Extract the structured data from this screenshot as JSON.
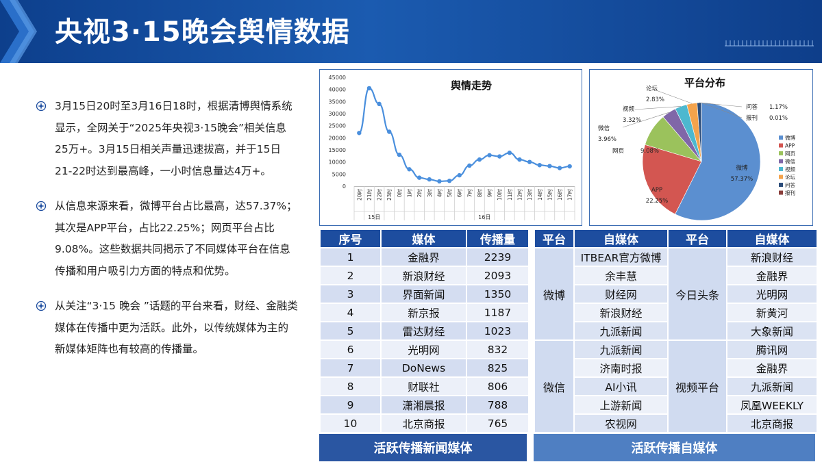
{
  "header": {
    "title": "央视3·15晚会舆情数据"
  },
  "paragraphs": [
    "3月15日20时至3月16日18时，根据清博舆情系统显示，全网关于“2025年央视3·15晚会”相关信息25万+。3月15日相关声量迅速拔高，并于15日21-22时达到最高峰，一小时信息量达4万+。",
    "从信息来源来看，微博平台占比最高，达57.37%；其次是APP平台，占比22.25%；网页平台占比9.08%。这些数据共同揭示了不同媒体平台在信息传播和用户吸引力方面的特点和优势。",
    "从关注“3·15 晚会 ”话题的平台来看，财经、金融类媒体在传播中更为活跃。此外，以传统媒体为主的新媒体矩阵也有较高的传播量。"
  ],
  "chart_data": [
    {
      "type": "line",
      "title": "舆情走势",
      "x": [
        "20时",
        "21时",
        "22时",
        "23时",
        "0时",
        "1时",
        "2时",
        "3时",
        "4时",
        "5时",
        "6时",
        "7时",
        "8时",
        "9时",
        "10时",
        "11时",
        "12时",
        "13时",
        "14时",
        "15时",
        "16时",
        "17时"
      ],
      "values": [
        22000,
        40500,
        34000,
        22500,
        13000,
        7000,
        3500,
        2800,
        2000,
        2200,
        4500,
        8500,
        11000,
        12800,
        12300,
        13800,
        11000,
        10000,
        8700,
        8300,
        7500,
        8200
      ],
      "groups": [
        {
          "label": "15日",
          "from": 0,
          "to": 3
        },
        {
          "label": "16日",
          "from": 4,
          "to": 21
        }
      ],
      "ylim": [
        0,
        45000
      ],
      "yticks": [
        0,
        5000,
        10000,
        15000,
        20000,
        25000,
        30000,
        35000,
        40000,
        45000
      ],
      "color": "#4a8fdd"
    },
    {
      "type": "pie",
      "title": "平台分布",
      "slices": [
        {
          "name": "微博",
          "value": 57.37,
          "label": "57.37%",
          "color": "#5b8fd0"
        },
        {
          "name": "APP",
          "value": 22.25,
          "label": "22.25%",
          "color": "#d35651"
        },
        {
          "name": "网页",
          "value": 9.08,
          "label": "9.08%",
          "color": "#9bc25c"
        },
        {
          "name": "微信",
          "value": 3.96,
          "label": "3.96%",
          "color": "#8067a8"
        },
        {
          "name": "视频",
          "value": 3.32,
          "label": "3.32%",
          "color": "#4db8cf"
        },
        {
          "name": "论坛",
          "value": 2.83,
          "label": "2.83%",
          "color": "#f4a34c"
        },
        {
          "name": "问答",
          "value": 1.17,
          "label": "1.17%",
          "color": "#2c4d7a"
        },
        {
          "name": "报刊",
          "value": 0.01,
          "label": "0.01%",
          "color": "#8a3e3b"
        }
      ]
    }
  ],
  "news_table": {
    "headers": [
      "序号",
      "媒体",
      "传播量"
    ],
    "rows": [
      [
        "1",
        "金融界",
        "2239"
      ],
      [
        "2",
        "新浪财经",
        "2093"
      ],
      [
        "3",
        "界面新闻",
        "1350"
      ],
      [
        "4",
        "新京报",
        "1187"
      ],
      [
        "5",
        "雷达财经",
        "1023"
      ],
      [
        "6",
        "光明网",
        "832"
      ],
      [
        "7",
        "DoNews",
        "825"
      ],
      [
        "8",
        "财联社",
        "806"
      ],
      [
        "9",
        "潇湘晨报",
        "788"
      ],
      [
        "10",
        "北京商报",
        "765"
      ]
    ],
    "footer": "活跃传播新闻媒体"
  },
  "self_table": {
    "headers": [
      "平台",
      "自媒体",
      "平台",
      "自媒体"
    ],
    "groups": [
      {
        "left_platform": "微博",
        "left": [
          "ITBEAR官方微博",
          "余丰慧",
          "财经网",
          "新浪财经",
          "九派新闻"
        ],
        "right_platform": "今日头条",
        "right": [
          "新浪财经",
          "金融界",
          "光明网",
          "新黄河",
          "大象新闻"
        ]
      },
      {
        "left_platform": "微信",
        "left": [
          "九派新闻",
          "济南时报",
          "AI小讯",
          "上游新闻",
          "农视网"
        ],
        "right_platform": "视频平台",
        "right": [
          "腾讯网",
          "金融界",
          "九派新闻",
          "凤凰WEEKLY",
          "北京商报"
        ]
      }
    ],
    "footer": "活跃传播自媒体"
  }
}
